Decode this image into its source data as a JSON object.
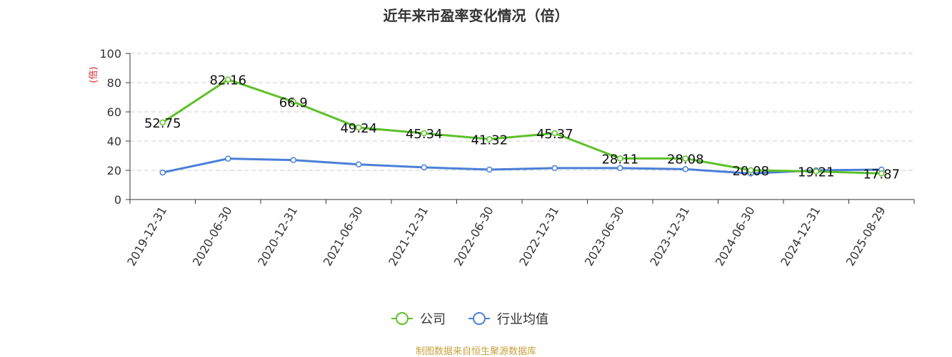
{
  "chart_data": {
    "type": "line",
    "title": "近年来市盈率变化情况（倍）",
    "ylabel": "(倍)",
    "ylim": [
      0,
      100
    ],
    "yticks": [
      0,
      20,
      40,
      60,
      80,
      100
    ],
    "categories": [
      "2019-12-31",
      "2020-06-30",
      "2020-12-31",
      "2021-06-30",
      "2021-12-31",
      "2022-06-30",
      "2022-12-31",
      "2023-06-30",
      "2023-12-31",
      "2024-06-30",
      "2024-12-31",
      "2025-08-29"
    ],
    "series": [
      {
        "name": "公司",
        "color": "#5cc128",
        "values": [
          52.75,
          82.16,
          66.9,
          49.24,
          45.34,
          41.32,
          45.37,
          28.11,
          28.08,
          20.08,
          19.21,
          17.87
        ],
        "labels": [
          "52.75",
          "82.16",
          "66.9",
          "49.24",
          "45.34",
          "41.32",
          "45.37",
          "28.11",
          "28.08",
          "20.08",
          "19.21",
          "17.87"
        ]
      },
      {
        "name": "行业均值",
        "color": "#4a7fd8",
        "values": [
          18.5,
          28.0,
          27.0,
          24.0,
          22.0,
          20.5,
          21.5,
          21.5,
          20.8,
          17.8,
          20.0,
          20.5
        ]
      }
    ],
    "grid": "horizontal-dashed",
    "legend": "bottom-center"
  },
  "source": "制图数据来自恒生聚源数据库"
}
